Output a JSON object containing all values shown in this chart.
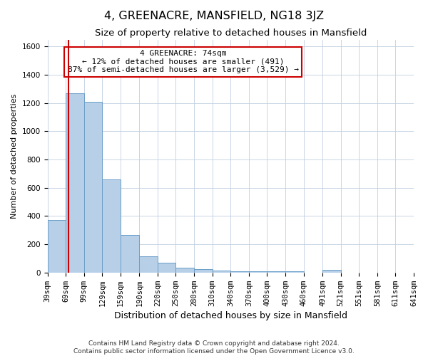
{
  "title": "4, GREENACRE, MANSFIELD, NG18 3JZ",
  "subtitle": "Size of property relative to detached houses in Mansfield",
  "xlabel": "Distribution of detached houses by size in Mansfield",
  "ylabel": "Number of detached properties",
  "footer_line1": "Contains HM Land Registry data © Crown copyright and database right 2024.",
  "footer_line2": "Contains public sector information licensed under the Open Government Licence v3.0.",
  "bins": [
    "39sqm",
    "69sqm",
    "99sqm",
    "129sqm",
    "159sqm",
    "190sqm",
    "220sqm",
    "250sqm",
    "280sqm",
    "310sqm",
    "340sqm",
    "370sqm",
    "400sqm",
    "430sqm",
    "460sqm",
    "491sqm",
    "521sqm",
    "551sqm",
    "581sqm",
    "611sqm",
    "641sqm"
  ],
  "bin_edges": [
    39,
    69,
    99,
    129,
    159,
    190,
    220,
    250,
    280,
    310,
    340,
    370,
    400,
    430,
    460,
    491,
    521,
    551,
    581,
    611,
    641
  ],
  "bar_values": [
    370,
    1270,
    1210,
    660,
    265,
    115,
    68,
    35,
    22,
    15,
    10,
    10,
    10,
    10,
    0,
    20,
    0,
    0,
    0,
    0
  ],
  "bar_color": "#b8cfe8",
  "bar_edge_color": "#6b9ec8",
  "ylim": [
    0,
    1650
  ],
  "yticks": [
    0,
    200,
    400,
    600,
    800,
    1000,
    1200,
    1400,
    1600
  ],
  "property_size": 74,
  "red_line_color": "#cc0000",
  "annotation_text": "4 GREENACRE: 74sqm\n← 12% of detached houses are smaller (491)\n87% of semi-detached houses are larger (3,529) →",
  "annotation_box_color": "#cc0000",
  "background_color": "#ffffff",
  "grid_color": "#c0cfe0",
  "title_fontsize": 11.5,
  "subtitle_fontsize": 9.5,
  "xlabel_fontsize": 9,
  "ylabel_fontsize": 8,
  "tick_fontsize": 7.5,
  "annotation_fontsize": 8,
  "footer_fontsize": 6.5
}
